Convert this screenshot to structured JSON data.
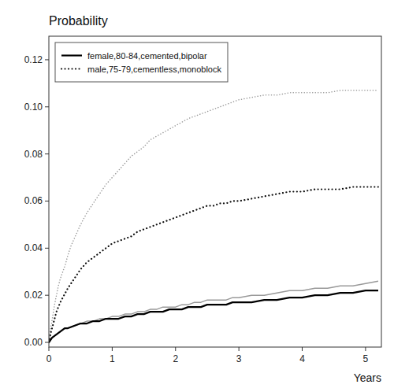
{
  "chart_data": {
    "type": "line",
    "title": "Probability",
    "x_label": "Years",
    "xlim": [
      0,
      5.25
    ],
    "ylim": [
      -0.002,
      0.13
    ],
    "xticks": [
      0,
      1,
      2,
      3,
      4,
      5
    ],
    "yticks": [
      {
        "value": 0.0,
        "label": "0.00"
      },
      {
        "value": 0.02,
        "label": "0.02"
      },
      {
        "value": 0.04,
        "label": "0.04"
      },
      {
        "value": 0.06,
        "label": "0.06"
      },
      {
        "value": 0.08,
        "label": "0.08"
      },
      {
        "value": 0.1,
        "label": "0.10"
      },
      {
        "value": 0.12,
        "label": "0.12"
      }
    ],
    "grid": false,
    "legend": "upper left",
    "series": [
      {
        "color": "#999999",
        "line_style": "dotted",
        "x": [
          0.0,
          0.03,
          0.06,
          0.09,
          0.12,
          0.15,
          0.18,
          0.22,
          0.26,
          0.3,
          0.35,
          0.4,
          0.45,
          0.5,
          0.6,
          0.7,
          0.8,
          0.9,
          1.0,
          1.1,
          1.2,
          1.3,
          1.4,
          1.5,
          1.6,
          1.8,
          2.0,
          2.2,
          2.4,
          2.6,
          2.8,
          3.0,
          3.2,
          3.4,
          3.6,
          3.8,
          4.0,
          4.2,
          4.4,
          4.6,
          4.8,
          5.0,
          5.2
        ],
        "values": [
          0.0,
          0.006,
          0.011,
          0.016,
          0.02,
          0.024,
          0.027,
          0.03,
          0.033,
          0.037,
          0.041,
          0.044,
          0.047,
          0.05,
          0.055,
          0.059,
          0.063,
          0.067,
          0.07,
          0.073,
          0.076,
          0.079,
          0.081,
          0.083,
          0.086,
          0.089,
          0.092,
          0.095,
          0.097,
          0.099,
          0.101,
          0.103,
          0.104,
          0.105,
          0.105,
          0.106,
          0.106,
          0.106,
          0.106,
          0.107,
          0.107,
          0.107,
          0.107
        ]
      },
      {
        "name": "male,75-79,cementless,monoblock",
        "color": "#111111",
        "line_style": "dotted",
        "x": [
          0.0,
          0.03,
          0.06,
          0.09,
          0.12,
          0.15,
          0.18,
          0.22,
          0.26,
          0.3,
          0.35,
          0.4,
          0.45,
          0.5,
          0.6,
          0.7,
          0.8,
          0.9,
          1.0,
          1.1,
          1.2,
          1.3,
          1.4,
          1.5,
          1.6,
          1.7,
          1.8,
          1.9,
          2.0,
          2.1,
          2.2,
          2.3,
          2.4,
          2.5,
          2.6,
          2.7,
          2.8,
          2.9,
          3.0,
          3.2,
          3.4,
          3.6,
          3.8,
          4.0,
          4.2,
          4.4,
          4.6,
          4.8,
          5.0,
          5.2
        ],
        "values": [
          0.0,
          0.004,
          0.007,
          0.01,
          0.013,
          0.015,
          0.017,
          0.019,
          0.021,
          0.023,
          0.025,
          0.027,
          0.029,
          0.031,
          0.034,
          0.036,
          0.038,
          0.04,
          0.042,
          0.043,
          0.044,
          0.045,
          0.047,
          0.048,
          0.049,
          0.05,
          0.051,
          0.052,
          0.053,
          0.054,
          0.055,
          0.056,
          0.057,
          0.058,
          0.058,
          0.059,
          0.059,
          0.06,
          0.06,
          0.061,
          0.062,
          0.063,
          0.064,
          0.064,
          0.065,
          0.065,
          0.065,
          0.066,
          0.066,
          0.066
        ]
      },
      {
        "color": "#999999",
        "line_style": "solid",
        "x": [
          0.0,
          0.05,
          0.1,
          0.15,
          0.2,
          0.25,
          0.3,
          0.4,
          0.5,
          0.6,
          0.7,
          0.8,
          0.9,
          1.0,
          1.1,
          1.2,
          1.3,
          1.4,
          1.5,
          1.6,
          1.7,
          1.8,
          1.9,
          2.0,
          2.1,
          2.2,
          2.3,
          2.4,
          2.5,
          2.6,
          2.7,
          2.8,
          2.9,
          3.0,
          3.2,
          3.4,
          3.6,
          3.8,
          4.0,
          4.2,
          4.4,
          4.6,
          4.8,
          5.0,
          5.2
        ],
        "values": [
          0.0,
          0.002,
          0.003,
          0.004,
          0.005,
          0.006,
          0.006,
          0.007,
          0.008,
          0.009,
          0.009,
          0.01,
          0.01,
          0.011,
          0.011,
          0.012,
          0.012,
          0.013,
          0.013,
          0.014,
          0.014,
          0.015,
          0.015,
          0.015,
          0.016,
          0.016,
          0.017,
          0.017,
          0.018,
          0.018,
          0.018,
          0.018,
          0.019,
          0.019,
          0.02,
          0.02,
          0.021,
          0.022,
          0.022,
          0.023,
          0.023,
          0.024,
          0.024,
          0.025,
          0.026
        ]
      },
      {
        "name": "female,80-84,cemented,bipolar",
        "color": "#000000",
        "line_style": "solid",
        "x": [
          0.0,
          0.05,
          0.1,
          0.15,
          0.2,
          0.25,
          0.3,
          0.4,
          0.5,
          0.6,
          0.7,
          0.8,
          0.9,
          1.0,
          1.1,
          1.2,
          1.3,
          1.4,
          1.5,
          1.6,
          1.7,
          1.8,
          1.9,
          2.0,
          2.1,
          2.2,
          2.3,
          2.4,
          2.5,
          2.6,
          2.7,
          2.8,
          2.9,
          3.0,
          3.2,
          3.4,
          3.6,
          3.8,
          4.0,
          4.2,
          4.4,
          4.6,
          4.8,
          5.0,
          5.2
        ],
        "values": [
          0.0,
          0.002,
          0.003,
          0.004,
          0.005,
          0.006,
          0.006,
          0.007,
          0.008,
          0.008,
          0.009,
          0.009,
          0.01,
          0.01,
          0.01,
          0.011,
          0.011,
          0.012,
          0.012,
          0.013,
          0.013,
          0.013,
          0.014,
          0.014,
          0.014,
          0.015,
          0.015,
          0.015,
          0.016,
          0.016,
          0.016,
          0.016,
          0.017,
          0.017,
          0.017,
          0.018,
          0.018,
          0.019,
          0.019,
          0.02,
          0.02,
          0.021,
          0.021,
          0.022,
          0.022
        ]
      }
    ]
  }
}
